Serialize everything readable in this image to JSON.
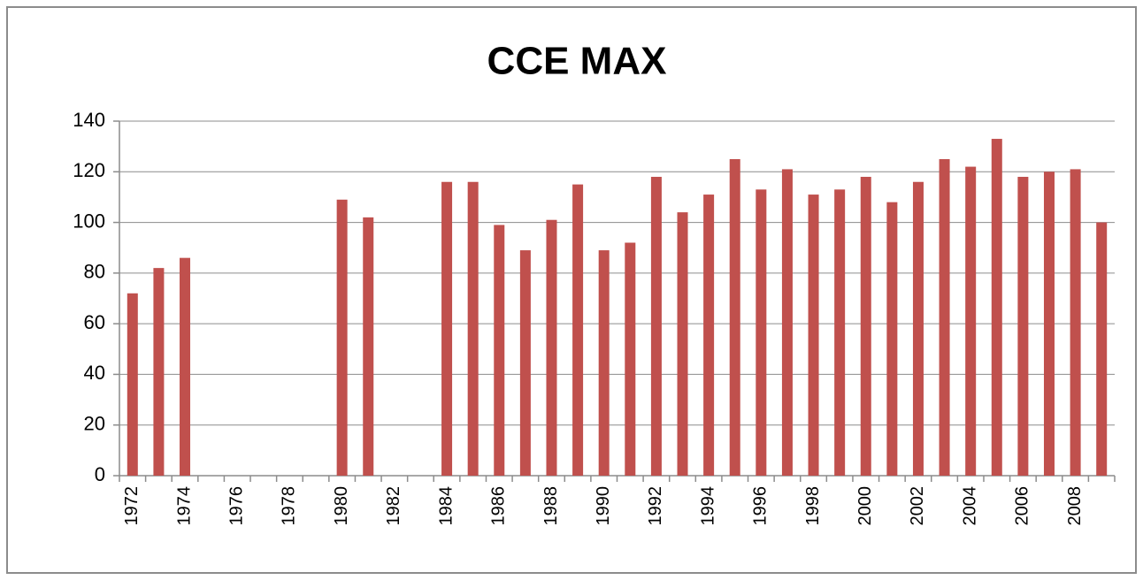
{
  "chart_data": {
    "type": "bar",
    "title": "CCE MAX",
    "categories": [
      "1972",
      null,
      "1974",
      null,
      "1976",
      null,
      "1978",
      null,
      "1980",
      null,
      "1982",
      null,
      "1984",
      null,
      "1986",
      null,
      "1988",
      null,
      "1990",
      null,
      "1992",
      null,
      "1994",
      null,
      "1996",
      null,
      "1998",
      null,
      "2000",
      null,
      "2002",
      null,
      "2004",
      null,
      "2006",
      null,
      "2008",
      null
    ],
    "values": [
      72,
      82,
      86,
      null,
      null,
      null,
      null,
      null,
      109,
      102,
      null,
      null,
      116,
      116,
      99,
      89,
      101,
      115,
      89,
      92,
      118,
      104,
      111,
      125,
      113,
      121,
      111,
      113,
      118,
      108,
      116,
      125,
      122,
      133,
      118,
      120,
      121,
      100
    ],
    "color": "#c0504d",
    "ylim": [
      0,
      140
    ],
    "yticks": [
      0,
      20,
      40,
      60,
      80,
      100,
      120,
      140
    ],
    "grid": true
  }
}
